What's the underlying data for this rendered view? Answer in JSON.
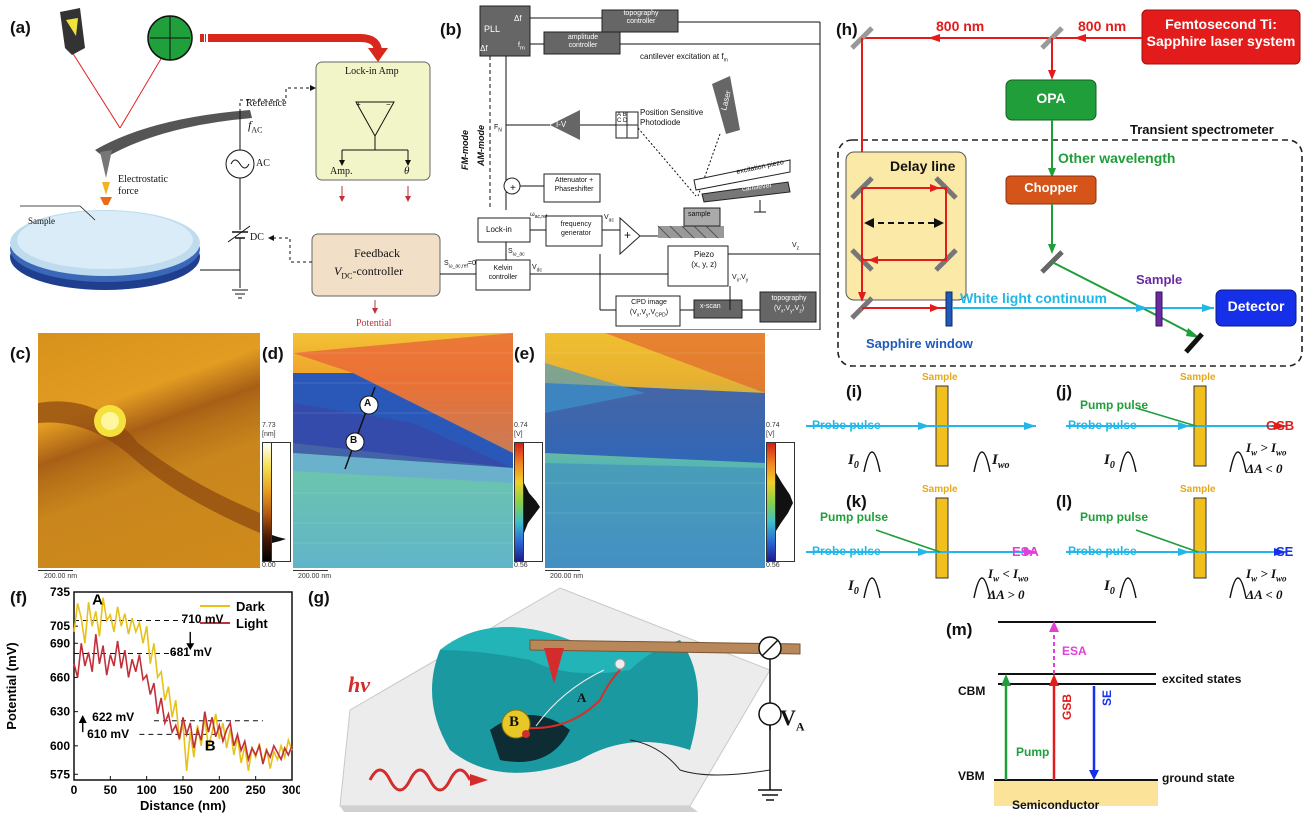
{
  "panels": [
    "(a)",
    "(b)",
    "(c)",
    "(d)",
    "(e)",
    "(f)",
    "(g)",
    "(h)",
    "(i)",
    "(j)",
    "(k)",
    "(l)",
    "(m)"
  ],
  "a": {
    "sample": "Sample",
    "electrostatic": "Electrostatic",
    "force": "force",
    "reference": "Reference",
    "fac": "f",
    "fac_sub": "AC",
    "ac": "AC",
    "dc": "DC",
    "lockin": "Lock-in Amp",
    "amp": "Amp.",
    "theta": "θ",
    "feedback": "Feedback",
    "vdc_ctrl_v": "V",
    "vdc_ctrl_sub": "DC",
    "vdc_ctrl_rest": "-controller",
    "potential": "Potential"
  },
  "b": {
    "pll": "PLL",
    "df1": "Δf",
    "df2": "Δf",
    "fm": "f",
    "topo_ctrl1": "topography",
    "topo_ctrl2": "controller",
    "amp_ctrl1": "amplitude",
    "amp_ctrl2": "controller",
    "cant_exc": "cantilever excitation at f",
    "fn": "F",
    "iv": "I-V",
    "psd1": "Position Sensitive",
    "psd2": "Photodiode",
    "laser": "Laser",
    "fm_mode": "FM-mode",
    "am_mode": "AM-mode",
    "atten1": "Attenuator +",
    "atten2": "Phaseshifter",
    "omega": "ω",
    "freq1": "frequency",
    "freq2": "generator",
    "lockin": "Lock-in",
    "vac": "V",
    "sample": "sample",
    "exc_piezo": "excitation piezo",
    "cantilever": "cantilever",
    "s_eq": "S",
    "s_eq_rest": "=0",
    "kelvin1": "Kelvin",
    "kelvin2": "controller",
    "vdc": "V",
    "piezo1": "Piezo",
    "piezo2": "(x, y, z)",
    "vz": "V",
    "vxvy": "V",
    "cpd1": "CPD image",
    "cpd2": "(V",
    "xscan": "x-scan",
    "topo1": "topography",
    "topo2": "(V"
  },
  "c": {
    "cmax": "7.73",
    "cunit": "[nm]",
    "cmin": "0.00",
    "scale": "200.00 nm"
  },
  "d": {
    "cmax": "0.74",
    "cunit": "[V]",
    "cmin": "0.56",
    "scale": "200.00 nm",
    "pointA": "A",
    "pointB": "B"
  },
  "e": {
    "cmax": "0.74",
    "cunit": "[V]",
    "cmin": "0.56",
    "scale": "200.00 nm"
  },
  "chart_data": {
    "type": "line",
    "xlabel": "Distance (nm)",
    "ylabel": "Potential (mV)",
    "xlim": [
      0,
      300
    ],
    "ylim": [
      570,
      735
    ],
    "xticks": [
      "0",
      "50",
      "100",
      "150",
      "200",
      "250",
      "300"
    ],
    "yticks": [
      "735",
      "705",
      "690",
      "660",
      "630",
      "600",
      "575"
    ],
    "ytick_values": [
      735,
      705,
      690,
      660,
      630,
      600,
      575
    ],
    "xtick_values": [
      0,
      50,
      100,
      150,
      200,
      250,
      300
    ],
    "colors": {
      "Dark": "#e6c21a",
      "Light": "#c0303a"
    },
    "series": [
      {
        "name": "Dark",
        "x": [
          0,
          5,
          10,
          15,
          20,
          25,
          30,
          35,
          40,
          45,
          50,
          55,
          60,
          65,
          70,
          75,
          80,
          85,
          90,
          95,
          100,
          105,
          110,
          115,
          120,
          125,
          130,
          135,
          140,
          145,
          150,
          155,
          160,
          165,
          170,
          175,
          180,
          185,
          190,
          195,
          200,
          205,
          210,
          215,
          220,
          225,
          230,
          235,
          240,
          245,
          250,
          255,
          260,
          265,
          270,
          275,
          280,
          285,
          290,
          295,
          300
        ],
        "y": [
          700,
          725,
          712,
          690,
          726,
          705,
          718,
          696,
          730,
          710,
          715,
          700,
          722,
          705,
          716,
          698,
          712,
          700,
          708,
          690,
          705,
          672,
          690,
          660,
          665,
          640,
          652,
          625,
          640,
          605,
          620,
          578,
          612,
          590,
          618,
          600,
          625,
          598,
          612,
          628,
          606,
          620,
          598,
          615,
          592,
          608,
          585,
          600,
          578,
          598,
          590,
          602,
          585,
          598,
          580,
          595,
          588,
          600,
          590,
          605,
          596
        ]
      },
      {
        "name": "Light",
        "x": [
          0,
          5,
          10,
          15,
          20,
          25,
          30,
          35,
          40,
          45,
          50,
          55,
          60,
          65,
          70,
          75,
          80,
          85,
          90,
          95,
          100,
          105,
          110,
          115,
          120,
          125,
          130,
          135,
          140,
          145,
          150,
          155,
          160,
          165,
          170,
          175,
          180,
          185,
          190,
          195,
          200,
          205,
          210,
          215,
          220,
          225,
          230,
          235,
          240,
          245,
          250,
          255,
          260,
          265,
          270,
          275,
          280,
          285,
          290,
          295,
          300
        ],
        "y": [
          672,
          660,
          690,
          670,
          682,
          665,
          698,
          672,
          688,
          662,
          680,
          670,
          692,
          668,
          684,
          660,
          676,
          665,
          680,
          658,
          662,
          645,
          655,
          628,
          642,
          620,
          628,
          612,
          618,
          606,
          625,
          610,
          620,
          598,
          614,
          605,
          630,
          612,
          625,
          608,
          618,
          604,
          614,
          620,
          600,
          610,
          596,
          604,
          588,
          598,
          592,
          600,
          584,
          596,
          590,
          600,
          594,
          588,
          598,
          592,
          600
        ]
      }
    ],
    "annotations": [
      "A",
      "B",
      "710 mV",
      "681 mV",
      "622 mV",
      "610 mV"
    ],
    "arrow_label": "↓",
    "legend_position": "top-right"
  },
  "g": {
    "hv": "hv",
    "A": "A",
    "B": "B",
    "va": "V",
    "va_sub": "A"
  },
  "h": {
    "laser1": "Femtosecond Ti:",
    "laser2": "Sapphire laser system",
    "nm1": "800 nm",
    "nm2": "800 nm",
    "opa": "OPA",
    "transient": "Transient spectrometer",
    "other": "Other wavelength",
    "delay": "Delay line",
    "chopper": "Chopper",
    "sample": "Sample",
    "wlc": "White light continuum",
    "detector": "Detector",
    "sapphire": "Sapphire window",
    "colors": {
      "laser": "#e31b1b",
      "opa": "#1f9e3a",
      "chopper": "#d4541a",
      "detector": "#1530e8",
      "wlc": "#22b7e8",
      "sample": "#6a2aa0"
    }
  },
  "i": {
    "sample": "Sample",
    "probe": "Probe pulse",
    "i0": "I",
    "i0sub": "0",
    "iwo": "I",
    "iwosub": "wo"
  },
  "j": {
    "sample": "Sample",
    "pump": "Pump pulse",
    "probe": "Probe pulse",
    "gsb": "GSB",
    "i0": "I",
    "i0sub": "0",
    "cond1": "I",
    "cond1b": "w",
    "cond1c": " > I",
    "cond1d": "wo",
    "cond2": "ΔA < 0"
  },
  "k": {
    "sample": "Sample",
    "pump": "Pump pulse",
    "probe": "Probe pulse",
    "esa": "ESA",
    "i0": "I",
    "i0sub": "0",
    "cond1": "I",
    "cond1b": "w",
    "cond1c": " < I",
    "cond1d": "wo",
    "cond2": "ΔA > 0"
  },
  "l": {
    "sample": "Sample",
    "pump": "Pump pulse",
    "probe": "Probe pulse",
    "se": "SE",
    "i0": "I",
    "i0sub": "0",
    "cond1": "I",
    "cond1b": "w",
    "cond1c": " > I",
    "cond1d": "wo",
    "cond2": "ΔA < 0"
  },
  "m": {
    "esa": "ESA",
    "excited": "excited states",
    "cbm": "CBM",
    "vbm": "VBM",
    "ground": "ground state",
    "semi": "Semiconductor",
    "pump": "Pump",
    "gsb": "GSB",
    "se": "SE"
  }
}
